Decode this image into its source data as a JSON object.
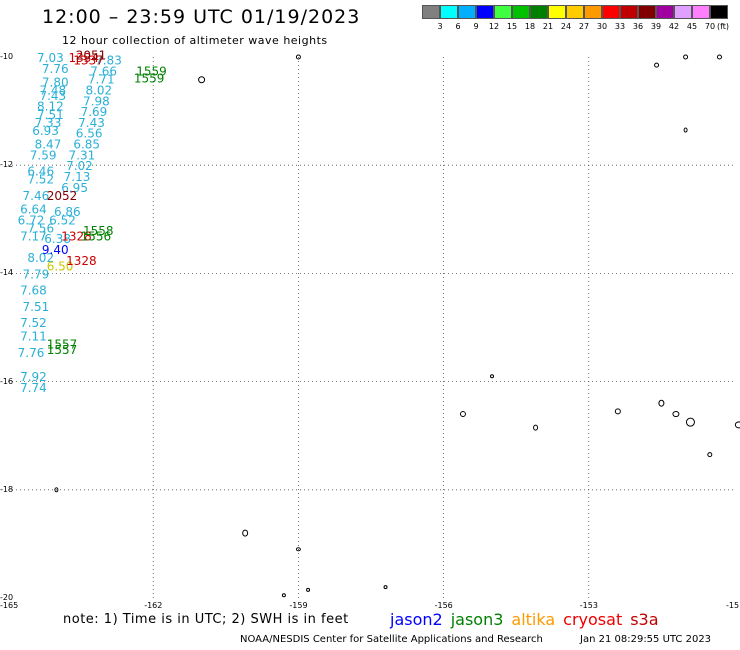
{
  "header": {
    "title": "12:00 – 23:59 UTC 01/19/2023",
    "subtitle": "12 hour collection of altimeter wave heights"
  },
  "legend": {
    "colors": [
      "#808080",
      "#00ffff",
      "#00b0ff",
      "#0000ff",
      "#40ff40",
      "#00c000",
      "#008000",
      "#ffff00",
      "#ffcc00",
      "#ff9900",
      "#ff0000",
      "#c00000",
      "#800000",
      "#a000a0",
      "#e0a0ff",
      "#ff80ff",
      "#000000"
    ],
    "labels": [
      "3",
      "6",
      "9",
      "12",
      "15",
      "18",
      "21",
      "24",
      "27",
      "30",
      "33",
      "36",
      "39",
      "42",
      "45",
      "70"
    ],
    "unit": "(ft)"
  },
  "map": {
    "lon_ticks": [
      "-165",
      "-162",
      "-159",
      "-156",
      "-153",
      "-15"
    ],
    "lat_ticks": [
      "-10",
      "-12",
      "-14",
      "-16",
      "-18",
      "-20"
    ],
    "obs": [
      {
        "t": "7.03",
        "c": "#2ab0d8",
        "lon": -164.4,
        "lat": -10.0
      },
      {
        "t": "7.76",
        "c": "#2ab0d8",
        "lon": -164.3,
        "lat": -10.2
      },
      {
        "t": "7.80",
        "c": "#2ab0d8",
        "lon": -164.3,
        "lat": -10.45
      },
      {
        "t": "7.48",
        "c": "#2ab0d8",
        "lon": -164.35,
        "lat": -10.6
      },
      {
        "t": "7.43",
        "c": "#2ab0d8",
        "lon": -164.35,
        "lat": -10.7
      },
      {
        "t": "8.12",
        "c": "#2ab0d8",
        "lon": -164.4,
        "lat": -10.9
      },
      {
        "t": "7.51",
        "c": "#2ab0d8",
        "lon": -164.4,
        "lat": -11.05
      },
      {
        "t": "7.33",
        "c": "#2ab0d8",
        "lon": -164.45,
        "lat": -11.2
      },
      {
        "t": "6.93",
        "c": "#2ab0d8",
        "lon": -164.5,
        "lat": -11.35
      },
      {
        "t": "8.47",
        "c": "#2ab0d8",
        "lon": -164.45,
        "lat": -11.6
      },
      {
        "t": "7.59",
        "c": "#2ab0d8",
        "lon": -164.55,
        "lat": -11.8
      },
      {
        "t": "6.46",
        "c": "#2ab0d8",
        "lon": -164.6,
        "lat": -12.1
      },
      {
        "t": "7.52",
        "c": "#2ab0d8",
        "lon": -164.6,
        "lat": -12.25
      },
      {
        "t": "7.46",
        "c": "#2ab0d8",
        "lon": -164.7,
        "lat": -12.55
      },
      {
        "t": "6.64",
        "c": "#2ab0d8",
        "lon": -164.75,
        "lat": -12.8
      },
      {
        "t": "6.72",
        "c": "#2ab0d8",
        "lon": -164.8,
        "lat": -13.0
      },
      {
        "t": "7.17",
        "c": "#2ab0d8",
        "lon": -164.75,
        "lat": -13.3
      },
      {
        "t": "7.56",
        "c": "#2ab0d8",
        "lon": -164.6,
        "lat": -13.15
      },
      {
        "t": "8.02",
        "c": "#2ab0d8",
        "lon": -164.6,
        "lat": -13.7
      },
      {
        "t": "7.79",
        "c": "#2ab0d8",
        "lon": -164.7,
        "lat": -14.0
      },
      {
        "t": "7.68",
        "c": "#2ab0d8",
        "lon": -164.75,
        "lat": -14.3
      },
      {
        "t": "7.51",
        "c": "#2ab0d8",
        "lon": -164.7,
        "lat": -14.6
      },
      {
        "t": "7.52",
        "c": "#2ab0d8",
        "lon": -164.75,
        "lat": -14.9
      },
      {
        "t": "7.11",
        "c": "#2ab0d8",
        "lon": -164.75,
        "lat": -15.15
      },
      {
        "t": "7.76",
        "c": "#2ab0d8",
        "lon": -164.8,
        "lat": -15.45
      },
      {
        "t": "7.92",
        "c": "#2ab0d8",
        "lon": -164.75,
        "lat": -15.9
      },
      {
        "t": "7.74",
        "c": "#2ab0d8",
        "lon": -164.75,
        "lat": -16.1
      },
      {
        "t": "7.83",
        "c": "#2ab0d8",
        "lon": -163.2,
        "lat": -10.05
      },
      {
        "t": "7.66",
        "c": "#2ab0d8",
        "lon": -163.3,
        "lat": -10.25
      },
      {
        "t": "7.71",
        "c": "#2ab0d8",
        "lon": -163.35,
        "lat": -10.4
      },
      {
        "t": "8.02",
        "c": "#2ab0d8",
        "lon": -163.4,
        "lat": -10.6
      },
      {
        "t": "7.98",
        "c": "#2ab0d8",
        "lon": -163.45,
        "lat": -10.8
      },
      {
        "t": "7.69",
        "c": "#2ab0d8",
        "lon": -163.5,
        "lat": -11.0
      },
      {
        "t": "7.43",
        "c": "#2ab0d8",
        "lon": -163.55,
        "lat": -11.2
      },
      {
        "t": "6.56",
        "c": "#2ab0d8",
        "lon": -163.6,
        "lat": -11.4
      },
      {
        "t": "6.85",
        "c": "#2ab0d8",
        "lon": -163.65,
        "lat": -11.6
      },
      {
        "t": "7.31",
        "c": "#2ab0d8",
        "lon": -163.75,
        "lat": -11.8
      },
      {
        "t": "7.02",
        "c": "#2ab0d8",
        "lon": -163.8,
        "lat": -12.0
      },
      {
        "t": "7.13",
        "c": "#2ab0d8",
        "lon": -163.85,
        "lat": -12.2
      },
      {
        "t": "6.95",
        "c": "#2ab0d8",
        "lon": -163.9,
        "lat": -12.4
      },
      {
        "t": "6.86",
        "c": "#2ab0d8",
        "lon": -164.05,
        "lat": -12.85
      },
      {
        "t": "6.52",
        "c": "#2ab0d8",
        "lon": -164.15,
        "lat": -13.0
      },
      {
        "t": "6.38",
        "c": "#2ab0d8",
        "lon": -164.25,
        "lat": -13.35
      },
      {
        "t": "9.40",
        "c": "#0000ff",
        "lon": -164.3,
        "lat": -13.55
      },
      {
        "t": "6.50",
        "c": "#c8c800",
        "lon": -164.2,
        "lat": -13.85
      },
      {
        "t": "1334",
        "c": "#cc0000",
        "lon": -163.75,
        "lat": -10.0
      },
      {
        "t": "1337",
        "c": "#cc0000",
        "lon": -163.65,
        "lat": -10.05
      },
      {
        "t": "2051",
        "c": "#800000",
        "lon": -163.6,
        "lat": -9.95
      },
      {
        "t": "2052",
        "c": "#800000",
        "lon": -164.2,
        "lat": -12.55
      },
      {
        "t": "1328",
        "c": "#cc0000",
        "lon": -163.9,
        "lat": -13.3
      },
      {
        "t": "1328",
        "c": "#cc0000",
        "lon": -163.8,
        "lat": -13.75
      },
      {
        "t": "1559",
        "c": "#008000",
        "lon": -162.35,
        "lat": -10.25
      },
      {
        "t": "1559",
        "c": "#008000",
        "lon": -162.4,
        "lat": -10.38
      },
      {
        "t": "1558",
        "c": "#008000",
        "lon": -163.45,
        "lat": -13.2
      },
      {
        "t": "1556",
        "c": "#008000",
        "lon": -163.5,
        "lat": -13.3
      },
      {
        "t": "1557",
        "c": "#008000",
        "lon": -164.2,
        "lat": -15.3
      },
      {
        "t": "1557",
        "c": "#008000",
        "lon": -164.2,
        "lat": -15.4
      }
    ]
  },
  "footer": {
    "note": "note: 1) Time is in UTC; 2) SWH is in feet",
    "satellites": [
      {
        "name": "jason2",
        "color": "#0000ff"
      },
      {
        "name": "jason3",
        "color": "#008000"
      },
      {
        "name": "altika",
        "color": "#ff9900"
      },
      {
        "name": "cryosat",
        "color": "#ee0000"
      },
      {
        "name": "s3a",
        "color": "#c00000"
      }
    ],
    "credit": "NOAA/NESDIS Center for Satellite Applications and Research",
    "timestamp": "Jan 21 08:29:55 UTC 2023"
  }
}
